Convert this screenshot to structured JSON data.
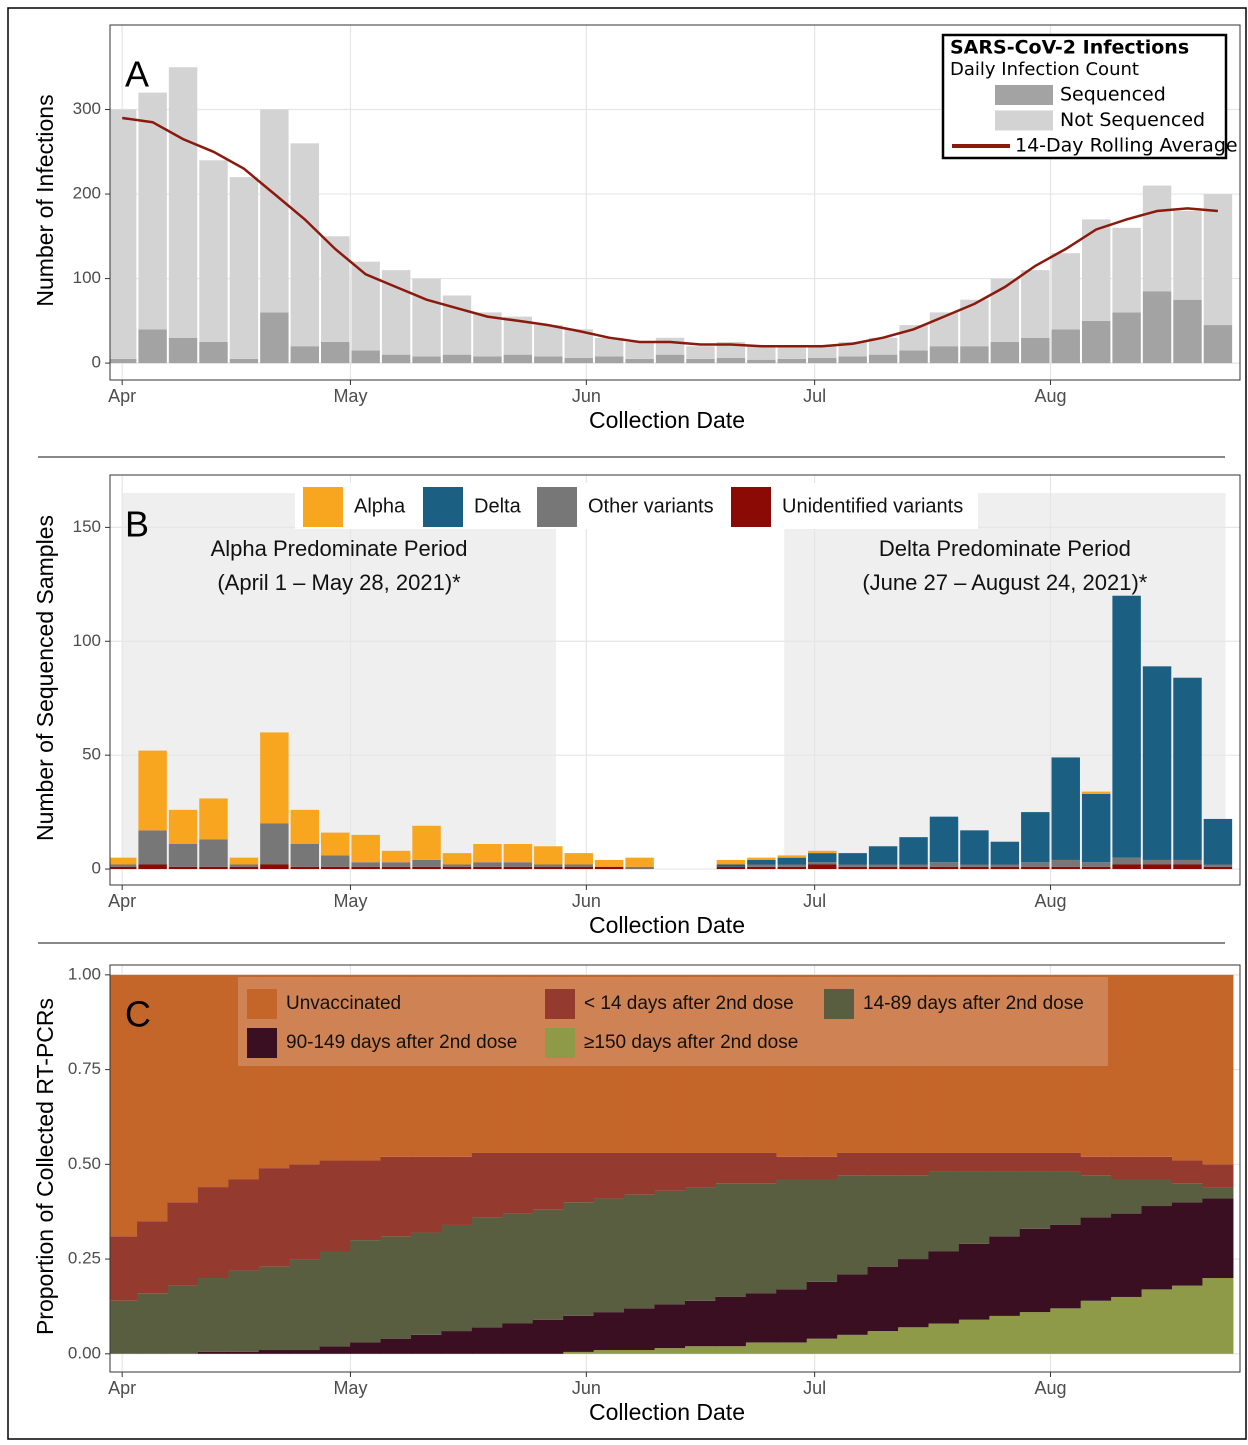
{
  "chart_data": [
    {
      "type": "bar",
      "panel_label": "A",
      "x_label": "Collection Date",
      "y_label": "Number of Infections",
      "legend": "top-right",
      "legend_title": "SARS-CoV-2 Infections",
      "legend_subtitle": "Daily Infection Count",
      "stacked": true,
      "grid": true,
      "x": [
        0,
        4,
        8,
        12,
        16,
        20,
        24,
        28,
        32,
        36,
        40,
        44,
        48,
        52,
        56,
        60,
        64,
        68,
        72,
        76,
        80,
        84,
        88,
        92,
        96,
        100,
        104,
        108,
        112,
        116,
        120,
        124,
        128,
        132,
        136,
        140,
        144
      ],
      "xlim": [
        -1.6,
        146.9
      ],
      "xticks": [
        {
          "value": 0,
          "label": "Apr"
        },
        {
          "value": 30,
          "label": "May"
        },
        {
          "value": 61,
          "label": "Jun"
        },
        {
          "value": 91,
          "label": "Jul"
        },
        {
          "value": 122,
          "label": "Aug"
        }
      ],
      "ylim": [
        -20,
        400
      ],
      "yticks": [
        0,
        100,
        200,
        300
      ],
      "series": [
        {
          "name": "Sequenced",
          "color": "#a3a3a3",
          "values": [
            5,
            40,
            30,
            25,
            5,
            60,
            20,
            25,
            15,
            10,
            8,
            10,
            8,
            10,
            8,
            6,
            8,
            5,
            10,
            5,
            6,
            4,
            5,
            6,
            8,
            10,
            15,
            20,
            20,
            25,
            30,
            40,
            50,
            60,
            85,
            75,
            45
          ]
        },
        {
          "name": "Not Sequenced",
          "color": "#d3d3d3",
          "values": [
            295,
            280,
            320,
            215,
            215,
            240,
            240,
            125,
            105,
            100,
            92,
            70,
            52,
            45,
            37,
            34,
            22,
            20,
            20,
            15,
            19,
            16,
            15,
            14,
            17,
            20,
            30,
            40,
            55,
            75,
            80,
            90,
            120,
            100,
            125,
            105,
            155
          ]
        },
        {
          "name": "14-Day Rolling Average",
          "type": "line",
          "color": "#8b1a0e",
          "values": [
            290,
            285,
            265,
            250,
            230,
            200,
            170,
            135,
            105,
            90,
            75,
            65,
            55,
            50,
            45,
            38,
            30,
            25,
            25,
            22,
            22,
            20,
            20,
            20,
            23,
            30,
            40,
            55,
            70,
            90,
            115,
            135,
            158,
            170,
            180,
            183,
            180
          ]
        }
      ]
    },
    {
      "type": "bar",
      "panel_label": "B",
      "x_label": "Collection Date",
      "y_label": "Number of Sequenced Samples",
      "legend": "top",
      "stacked": true,
      "reverse_stack": true,
      "grid": true,
      "x": [
        0,
        4,
        8,
        12,
        16,
        20,
        24,
        28,
        32,
        36,
        40,
        44,
        48,
        52,
        56,
        60,
        64,
        68,
        72,
        76,
        80,
        84,
        88,
        92,
        96,
        100,
        104,
        108,
        112,
        116,
        120,
        124,
        128,
        132,
        136,
        140,
        144
      ],
      "xlim": [
        -1.6,
        146.9
      ],
      "xticks": [
        {
          "value": 0,
          "label": "Apr"
        },
        {
          "value": 30,
          "label": "May"
        },
        {
          "value": 61,
          "label": "Jun"
        },
        {
          "value": 91,
          "label": "Jul"
        },
        {
          "value": 122,
          "label": "Aug"
        }
      ],
      "ylim": [
        -7,
        173
      ],
      "yticks": [
        0,
        50,
        100,
        150
      ],
      "annotations": [
        {
          "lines": [
            "Alpha Predominate Period",
            "(April 1 – May 28, 2021)*"
          ],
          "xspan": [
            0,
            57
          ]
        },
        {
          "lines": [
            "Delta Predominate Period",
            "(June 27 – August 24, 2021)*"
          ],
          "xspan": [
            87,
            145
          ]
        }
      ],
      "series": [
        {
          "name": "Alpha",
          "color": "#f8a51f",
          "values": [
            3,
            35,
            15,
            18,
            3,
            40,
            15,
            10,
            12,
            5,
            15,
            5,
            8,
            8,
            8,
            5,
            3,
            4,
            0,
            0,
            2,
            1,
            1,
            1,
            0,
            0,
            0,
            0,
            0,
            0,
            0,
            0,
            1,
            0,
            0,
            0,
            0
          ]
        },
        {
          "name": "Delta",
          "color": "#1b5f83",
          "values": [
            0,
            0,
            0,
            0,
            0,
            0,
            0,
            0,
            0,
            0,
            0,
            0,
            0,
            0,
            0,
            0,
            0,
            0,
            0,
            0,
            1,
            2,
            3,
            4,
            5,
            8,
            12,
            20,
            15,
            10,
            22,
            45,
            30,
            115,
            85,
            80,
            20
          ]
        },
        {
          "name": "Other variants",
          "color": "#777777",
          "values": [
            1,
            15,
            10,
            12,
            1,
            18,
            10,
            5,
            2,
            2,
            3,
            1,
            2,
            2,
            1,
            1,
            0,
            1,
            0,
            0,
            0,
            1,
            1,
            1,
            1,
            1,
            1,
            2,
            1,
            1,
            2,
            3,
            2,
            3,
            2,
            2,
            1
          ]
        },
        {
          "name": "Unidentified variants",
          "color": "#8b0a05",
          "values": [
            1,
            2,
            1,
            1,
            1,
            2,
            1,
            1,
            1,
            1,
            1,
            1,
            1,
            1,
            1,
            1,
            1,
            0,
            0,
            0,
            1,
            1,
            1,
            2,
            1,
            1,
            1,
            1,
            1,
            1,
            1,
            1,
            1,
            2,
            2,
            2,
            1
          ]
        }
      ]
    },
    {
      "type": "bar",
      "panel_label": "C",
      "x_label": "Collection Date",
      "y_label": "Proportion of Collected RT-PCRs",
      "legend": "top-left",
      "stacked": true,
      "reverse_stack": true,
      "grid": true,
      "x": [
        0,
        4,
        8,
        12,
        16,
        20,
        24,
        28,
        32,
        36,
        40,
        44,
        48,
        52,
        56,
        60,
        64,
        68,
        72,
        76,
        80,
        84,
        88,
        92,
        96,
        100,
        104,
        108,
        112,
        116,
        120,
        124,
        128,
        132,
        136,
        140,
        144
      ],
      "xlim": [
        -1.6,
        146.9
      ],
      "xticks": [
        {
          "value": 0,
          "label": "Apr"
        },
        {
          "value": 30,
          "label": "May"
        },
        {
          "value": 61,
          "label": "Jun"
        },
        {
          "value": 91,
          "label": "Jul"
        },
        {
          "value": 122,
          "label": "Aug"
        }
      ],
      "ylim": [
        -0.048,
        1.026
      ],
      "yticks": [
        {
          "value": 0,
          "label": "0.00"
        },
        {
          "value": 0.25,
          "label": "0.25"
        },
        {
          "value": 0.5,
          "label": "0.50"
        },
        {
          "value": 0.75,
          "label": "0.75"
        },
        {
          "value": 1,
          "label": "1.00"
        }
      ],
      "series": [
        {
          "name": "Unvaccinated",
          "color": "#c4652a",
          "values": [
            0.69,
            0.65,
            0.6,
            0.56,
            0.54,
            0.51,
            0.5,
            0.49,
            0.49,
            0.48,
            0.48,
            0.48,
            0.47,
            0.47,
            0.47,
            0.47,
            0.47,
            0.47,
            0.47,
            0.47,
            0.47,
            0.47,
            0.48,
            0.48,
            0.47,
            0.47,
            0.47,
            0.47,
            0.47,
            0.47,
            0.47,
            0.47,
            0.48,
            0.48,
            0.48,
            0.49,
            0.5
          ]
        },
        {
          "name": "< 14 days after 2nd dose",
          "color": "#953a2e",
          "values": [
            0.17,
            0.19,
            0.22,
            0.24,
            0.24,
            0.26,
            0.25,
            0.24,
            0.21,
            0.21,
            0.2,
            0.18,
            0.17,
            0.16,
            0.15,
            0.13,
            0.12,
            0.11,
            0.1,
            0.09,
            0.08,
            0.08,
            0.06,
            0.06,
            0.06,
            0.06,
            0.06,
            0.05,
            0.05,
            0.05,
            0.05,
            0.05,
            0.05,
            0.06,
            0.06,
            0.06,
            0.06
          ]
        },
        {
          "name": "14-89 days after 2nd dose",
          "color": "#5a5e40",
          "values": [
            0.14,
            0.16,
            0.18,
            0.195,
            0.215,
            0.22,
            0.24,
            0.25,
            0.27,
            0.27,
            0.27,
            0.28,
            0.29,
            0.29,
            0.29,
            0.3,
            0.3,
            0.3,
            0.3,
            0.3,
            0.3,
            0.29,
            0.29,
            0.27,
            0.26,
            0.24,
            0.22,
            0.21,
            0.19,
            0.17,
            0.15,
            0.14,
            0.11,
            0.09,
            0.07,
            0.05,
            0.03
          ]
        },
        {
          "name": "90-149 days after 2nd dose",
          "color": "#3a0f22",
          "values": [
            0,
            0,
            0,
            0.005,
            0.005,
            0.01,
            0.01,
            0.02,
            0.03,
            0.04,
            0.05,
            0.06,
            0.07,
            0.08,
            0.09,
            0.095,
            0.1,
            0.11,
            0.115,
            0.12,
            0.13,
            0.13,
            0.14,
            0.15,
            0.16,
            0.17,
            0.18,
            0.19,
            0.2,
            0.21,
            0.22,
            0.22,
            0.22,
            0.22,
            0.22,
            0.22,
            0.21
          ]
        },
        {
          "name": "≥150 days after 2nd dose",
          "color": "#8f9a49",
          "values": [
            0,
            0,
            0,
            0,
            0,
            0,
            0,
            0,
            0,
            0,
            0,
            0,
            0,
            0,
            0,
            0.005,
            0.01,
            0.01,
            0.015,
            0.02,
            0.02,
            0.03,
            0.03,
            0.04,
            0.05,
            0.06,
            0.07,
            0.08,
            0.09,
            0.1,
            0.11,
            0.12,
            0.14,
            0.15,
            0.17,
            0.18,
            0.2
          ]
        }
      ]
    }
  ]
}
